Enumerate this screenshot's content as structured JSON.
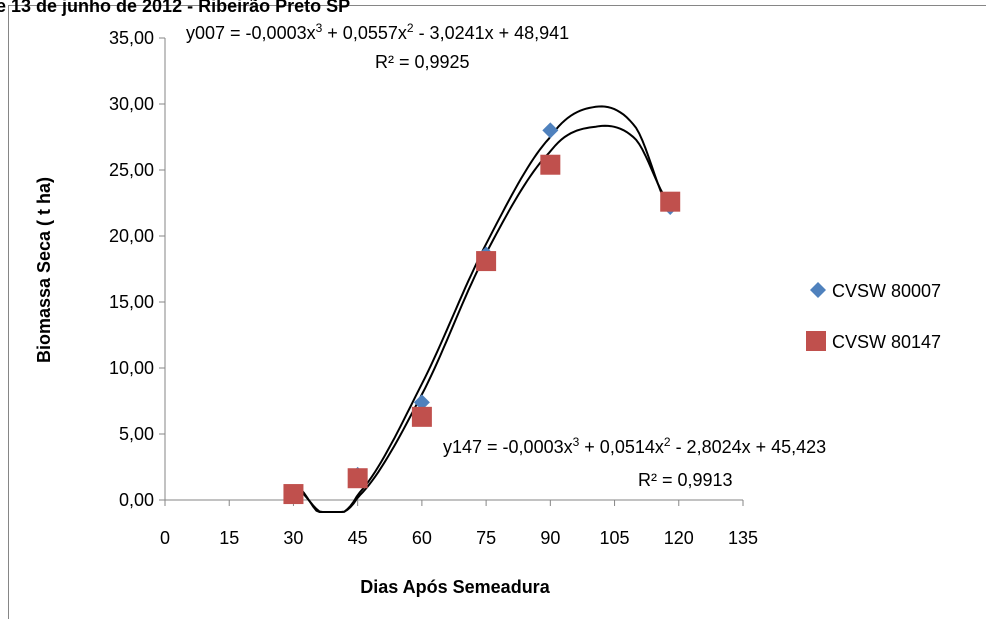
{
  "header_text": "e 13 de junho de 2012 - Ribeirão Preto SP",
  "chart_data": {
    "type": "scatter",
    "xlabel": "Dias Após Semeadura",
    "ylabel": "Biomassa Seca ( t ha)",
    "xlim": [
      0,
      135
    ],
    "ylim": [
      0,
      35
    ],
    "x_ticks": [
      "0",
      "15",
      "30",
      "45",
      "60",
      "75",
      "90",
      "105",
      "120",
      "135"
    ],
    "y_ticks": [
      "0,00",
      "5,00",
      "10,00",
      "15,00",
      "20,00",
      "25,00",
      "30,00",
      "35,00"
    ],
    "grid": false,
    "legend_position": "right",
    "series": [
      {
        "name": "CVSW 80007",
        "marker": "diamond",
        "color": "#4F81BD",
        "x": [
          30,
          45,
          60,
          75,
          90,
          118
        ],
        "y": [
          0.35,
          1.9,
          7.4,
          18.6,
          28.0,
          22.2
        ],
        "trendline": {
          "type": "poly3",
          "coefficients": [
            -0.0003,
            0.0557,
            -3.0241,
            48.941
          ],
          "equation_prefix": "y007 = -0,0003x",
          "equation_mid1": " + 0,0557x",
          "equation_mid2": " - 3,0241x + 48,941",
          "r2_label": "R² = 0,9925"
        }
      },
      {
        "name": "CVSW 80147",
        "marker": "square",
        "color": "#C0504D",
        "x": [
          30,
          45,
          60,
          75,
          90,
          118
        ],
        "y": [
          0.45,
          1.65,
          6.3,
          18.1,
          25.4,
          22.6
        ],
        "trendline": {
          "type": "poly3",
          "coefficients": [
            -0.0003,
            0.0514,
            -2.8024,
            45.423
          ],
          "equation_prefix": "y147 = -0,0003x",
          "equation_mid1": " + 0,0514x",
          "equation_mid2": " - 2,8024x + 45,423",
          "r2_label": "R² = 0,9913"
        }
      }
    ],
    "trendline_x_range": [
      31,
      118
    ],
    "trendline_plot_values": {
      "CVSW 80007": [
        [
          31,
          1.0
        ],
        [
          37,
          -1.2
        ],
        [
          45,
          0.4
        ],
        [
          60,
          8.8
        ],
        [
          75,
          19.4
        ],
        [
          90,
          27.5
        ],
        [
          101,
          29.8
        ],
        [
          110,
          28.2
        ],
        [
          118,
          22.0
        ]
      ],
      "CVSW 80147": [
        [
          31,
          0.8
        ],
        [
          37,
          -1.0
        ],
        [
          45,
          0.2
        ],
        [
          60,
          8.0
        ],
        [
          75,
          18.7
        ],
        [
          90,
          26.4
        ],
        [
          101,
          28.3
        ],
        [
          110,
          27.3
        ],
        [
          118,
          22.4
        ]
      ]
    }
  }
}
